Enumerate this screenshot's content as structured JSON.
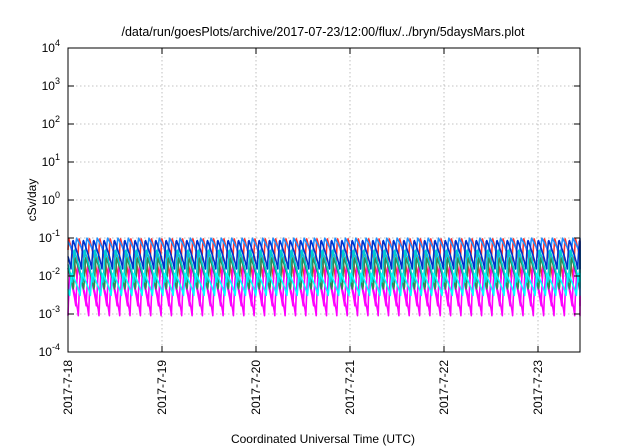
{
  "chart_data": {
    "type": "line",
    "title": "/data/run/goesPlots/archive/2017-07-23/12:00/flux/../bryn/5daysMars.plot",
    "xlabel": "Coordinated Universal Time (UTC)",
    "ylabel": "cSv/day",
    "yscale": "log",
    "ylim": [
      0.0001,
      10000
    ],
    "xlim_days": [
      0,
      5.55
    ],
    "grid": true,
    "y_ticks": [
      {
        "base": "10",
        "exp": "-4",
        "value": 0.0001
      },
      {
        "base": "10",
        "exp": "-3",
        "value": 0.001
      },
      {
        "base": "10",
        "exp": "-2",
        "value": 0.01
      },
      {
        "base": "10",
        "exp": "-1",
        "value": 0.1
      },
      {
        "base": "10",
        "exp": "0",
        "value": 1
      },
      {
        "base": "10",
        "exp": "1",
        "value": 10
      },
      {
        "base": "10",
        "exp": "2",
        "value": 100
      },
      {
        "base": "10",
        "exp": "3",
        "value": 1000
      },
      {
        "base": "10",
        "exp": "4",
        "value": 10000
      }
    ],
    "x_ticks": [
      {
        "label": "2017-7-18",
        "day": 0
      },
      {
        "label": "2017-7-19",
        "day": 1
      },
      {
        "label": "2017-7-20",
        "day": 2
      },
      {
        "label": "2017-7-21",
        "day": 3
      },
      {
        "label": "2017-7-22",
        "day": 4
      },
      {
        "label": "2017-7-23",
        "day": 5
      }
    ],
    "oscillation_period_days": 0.11,
    "series": [
      {
        "color": "#ff00ff",
        "peak": 0.011,
        "trough": 0.0009
      },
      {
        "color": "#ff3333",
        "peak": 0.1,
        "trough": 0.008
      },
      {
        "color": "#ff00ff",
        "peak": 0.018,
        "trough": 0.0015
      },
      {
        "color": "#1e90ff",
        "peak": 0.1,
        "trough": 0.03
      },
      {
        "color": "#2e8b57",
        "peak": 0.03,
        "trough": 0.004
      },
      {
        "color": "#00ced1",
        "peak": 0.05,
        "trough": 0.006
      },
      {
        "color": "#0033cc",
        "peak": 0.09,
        "trough": 0.015
      },
      {
        "color": "#00ffff",
        "peak": 0.012,
        "trough": 0.003
      }
    ]
  }
}
